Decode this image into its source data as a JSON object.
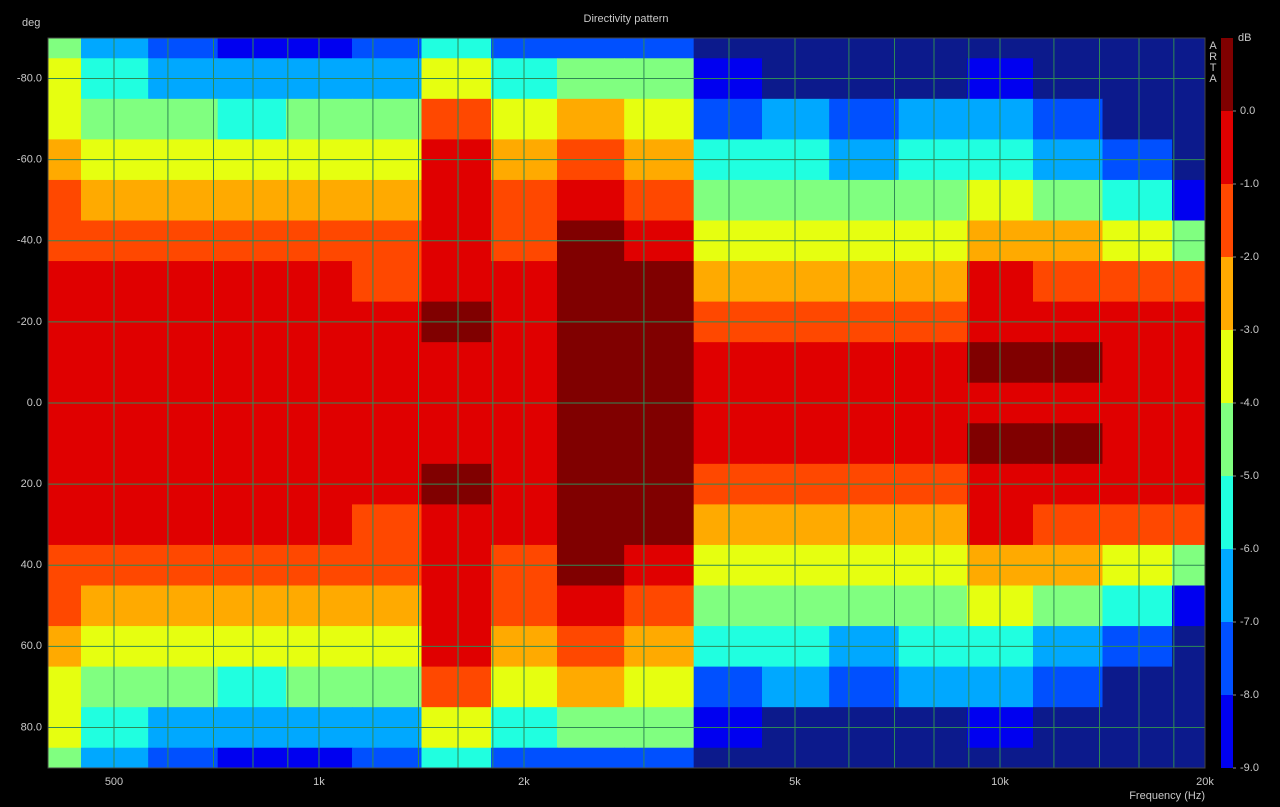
{
  "chart_data": {
    "type": "contour",
    "title": "Directivity pattern",
    "ylabel": "deg",
    "xlabel": "Frequency (Hz)",
    "watermark": "ARTA",
    "xscale": "log",
    "xlim": [
      400,
      20000
    ],
    "ylim": [
      -90,
      90
    ],
    "y_inverted": true,
    "grid": true,
    "xticks": [
      500,
      {
        "value": 1000,
        "label": "1k"
      },
      {
        "value": 2000,
        "label": "2k"
      },
      {
        "value": 5000,
        "label": "5k"
      },
      {
        "value": 10000,
        "label": "10k"
      },
      {
        "value": 20000,
        "label": "20k"
      }
    ],
    "xgrid": [
      500,
      600,
      700,
      800,
      900,
      1000,
      1200,
      1400,
      1600,
      1800,
      2000,
      3000,
      4000,
      5000,
      6000,
      7000,
      8000,
      9000,
      10000,
      12000,
      14000,
      16000,
      18000,
      20000
    ],
    "yticks": [
      {
        "value": -80,
        "label": "-80.0"
      },
      {
        "value": -60,
        "label": "-60.0"
      },
      {
        "value": -40,
        "label": "-40.0"
      },
      {
        "value": -20,
        "label": "-20.0"
      },
      {
        "value": 0,
        "label": "0.0"
      },
      {
        "value": 20,
        "label": "20.0"
      },
      {
        "value": 40,
        "label": "40.0"
      },
      {
        "value": 60,
        "label": "60.0"
      },
      {
        "value": 80,
        "label": "80.0"
      }
    ],
    "x": [
      400,
      500,
      630,
      800,
      1000,
      1250,
      1600,
      2000,
      2500,
      3150,
      4000,
      5000,
      6300,
      8000,
      10000,
      12500,
      16000,
      20000
    ],
    "y": [
      -90,
      -80,
      -70,
      -60,
      -50,
      -40,
      -30,
      -20,
      -10,
      0,
      10,
      20,
      30,
      40,
      50,
      60,
      70,
      80,
      90
    ],
    "z": [
      [
        -4.5,
        -6.5,
        -7.5,
        -8.5,
        -8.2,
        -7.8,
        -5.5,
        -7.5,
        -7.2,
        -7.8,
        -10,
        -10,
        -10,
        -10,
        -10,
        -10,
        -10,
        -10
      ],
      [
        -3.8,
        -5.5,
        -6.2,
        -6.8,
        -6.6,
        -6.2,
        -3.2,
        -5.8,
        -4.5,
        -5.0,
        -8.8,
        -9.5,
        -10,
        -9.5,
        -8.5,
        -10,
        -10,
        -10
      ],
      [
        -3.5,
        -4.2,
        -4.7,
        -5.2,
        -5.0,
        -4.8,
        -1.5,
        -3.9,
        -2.5,
        -3.2,
        -7.3,
        -7.0,
        -7.6,
        -6.8,
        -6.8,
        -8.0,
        -9.2,
        -10
      ],
      [
        -2.5,
        -3.3,
        -3.5,
        -3.8,
        -3.7,
        -3.5,
        -0.9,
        -2.9,
        -1.5,
        -2.2,
        -6.0,
        -5.8,
        -6.2,
        -5.6,
        -5.2,
        -6.4,
        -7.2,
        -10
      ],
      [
        -1.8,
        -2.4,
        -2.6,
        -2.8,
        -2.7,
        -2.6,
        -0.7,
        -2.0,
        -0.6,
        -1.4,
        -4.6,
        -4.6,
        -4.8,
        -4.6,
        -3.8,
        -4.8,
        -5.6,
        -8.3
      ],
      [
        -1.3,
        -1.5,
        -1.6,
        -1.8,
        -1.7,
        -1.6,
        -0.4,
        -1.4,
        0.0,
        -0.6,
        -3.4,
        -3.5,
        -3.6,
        -3.6,
        -2.2,
        -3.0,
        -3.6,
        -5.0
      ],
      [
        -0.8,
        -0.9,
        -0.9,
        -1.0,
        -1.0,
        -1.1,
        -0.2,
        -0.8,
        0.4,
        0.1,
        -2.2,
        -2.2,
        -2.3,
        -2.6,
        -0.8,
        -1.5,
        -2.0,
        -1.6
      ],
      [
        -0.6,
        -0.6,
        -0.6,
        -0.6,
        -0.6,
        -0.6,
        0.1,
        -0.6,
        0.5,
        0.3,
        -1.2,
        -1.1,
        -1.2,
        -1.7,
        -0.3,
        -0.6,
        -1.0,
        -0.9
      ],
      [
        -0.5,
        -0.5,
        -0.5,
        -0.5,
        -0.5,
        -0.5,
        -0.4,
        -0.5,
        0.5,
        0.3,
        -0.6,
        -0.6,
        -0.7,
        -1.0,
        0.2,
        0.2,
        -0.6,
        -0.6
      ],
      [
        -0.5,
        -0.5,
        -0.5,
        -0.5,
        -0.5,
        -0.5,
        -0.5,
        -0.5,
        0.5,
        0.3,
        -0.5,
        -0.5,
        -0.5,
        -0.6,
        -0.2,
        -0.3,
        -0.5,
        -0.5
      ],
      [
        -0.5,
        -0.5,
        -0.5,
        -0.5,
        -0.5,
        -0.5,
        -0.4,
        -0.5,
        0.5,
        0.3,
        -0.6,
        -0.6,
        -0.7,
        -1.0,
        0.2,
        0.2,
        -0.6,
        -0.6
      ],
      [
        -0.6,
        -0.6,
        -0.6,
        -0.6,
        -0.6,
        -0.6,
        0.1,
        -0.6,
        0.5,
        0.3,
        -1.2,
        -1.1,
        -1.2,
        -1.7,
        -0.3,
        -0.6,
        -1.0,
        -0.9
      ],
      [
        -0.8,
        -0.9,
        -0.9,
        -1.0,
        -1.0,
        -1.1,
        -0.2,
        -0.8,
        0.4,
        0.1,
        -2.2,
        -2.2,
        -2.3,
        -2.6,
        -0.8,
        -1.5,
        -2.0,
        -1.6
      ],
      [
        -1.3,
        -1.5,
        -1.6,
        -1.8,
        -1.7,
        -1.6,
        -0.4,
        -1.4,
        0.0,
        -0.6,
        -3.4,
        -3.5,
        -3.6,
        -3.6,
        -2.2,
        -3.0,
        -3.6,
        -5.0
      ],
      [
        -1.8,
        -2.4,
        -2.6,
        -2.8,
        -2.7,
        -2.6,
        -0.7,
        -2.0,
        -0.6,
        -1.4,
        -4.6,
        -4.6,
        -4.8,
        -4.6,
        -3.8,
        -4.8,
        -5.6,
        -8.3
      ],
      [
        -2.5,
        -3.3,
        -3.5,
        -3.8,
        -3.7,
        -3.5,
        -0.9,
        -2.9,
        -1.5,
        -2.2,
        -6.0,
        -5.8,
        -6.2,
        -5.6,
        -5.2,
        -6.4,
        -7.2,
        -10
      ],
      [
        -3.5,
        -4.2,
        -4.7,
        -5.2,
        -5.0,
        -4.8,
        -1.5,
        -3.9,
        -2.5,
        -3.2,
        -7.3,
        -7.0,
        -7.6,
        -6.8,
        -6.8,
        -8.0,
        -9.2,
        -10
      ],
      [
        -3.8,
        -5.5,
        -6.2,
        -6.8,
        -6.6,
        -6.2,
        -3.2,
        -5.8,
        -4.5,
        -5.0,
        -8.8,
        -9.5,
        -10,
        -9.5,
        -8.5,
        -10,
        -10,
        -10
      ],
      [
        -4.5,
        -6.5,
        -7.5,
        -8.5,
        -8.2,
        -7.8,
        -5.5,
        -7.5,
        -7.2,
        -7.8,
        -10,
        -10,
        -10,
        -10,
        -10,
        -10,
        -10,
        -10
      ]
    ],
    "colorbar": {
      "title": "dB",
      "lim": [
        -9,
        1
      ],
      "levels": [
        -9,
        -8,
        -7,
        -6,
        -5,
        -4,
        -3,
        -2,
        -1,
        0,
        1
      ],
      "colors": [
        "#0000f0",
        "#0050ff",
        "#00a8ff",
        "#20ffe0",
        "#80ff80",
        "#e6ff10",
        "#ffaa00",
        "#ff4800",
        "#e00000",
        "#800000"
      ],
      "under_color": "#0c1a8c",
      "ticks": [
        {
          "value": 0,
          "label": "0.0"
        },
        {
          "value": -1,
          "label": "-1.0"
        },
        {
          "value": -2,
          "label": "-2.0"
        },
        {
          "value": -3,
          "label": "-3.0"
        },
        {
          "value": -4,
          "label": "-4.0"
        },
        {
          "value": -5,
          "label": "-5.0"
        },
        {
          "value": -6,
          "label": "-6.0"
        },
        {
          "value": -7,
          "label": "-7.0"
        },
        {
          "value": -8,
          "label": "-8.0"
        },
        {
          "value": -9,
          "label": "-9.0"
        }
      ]
    }
  }
}
